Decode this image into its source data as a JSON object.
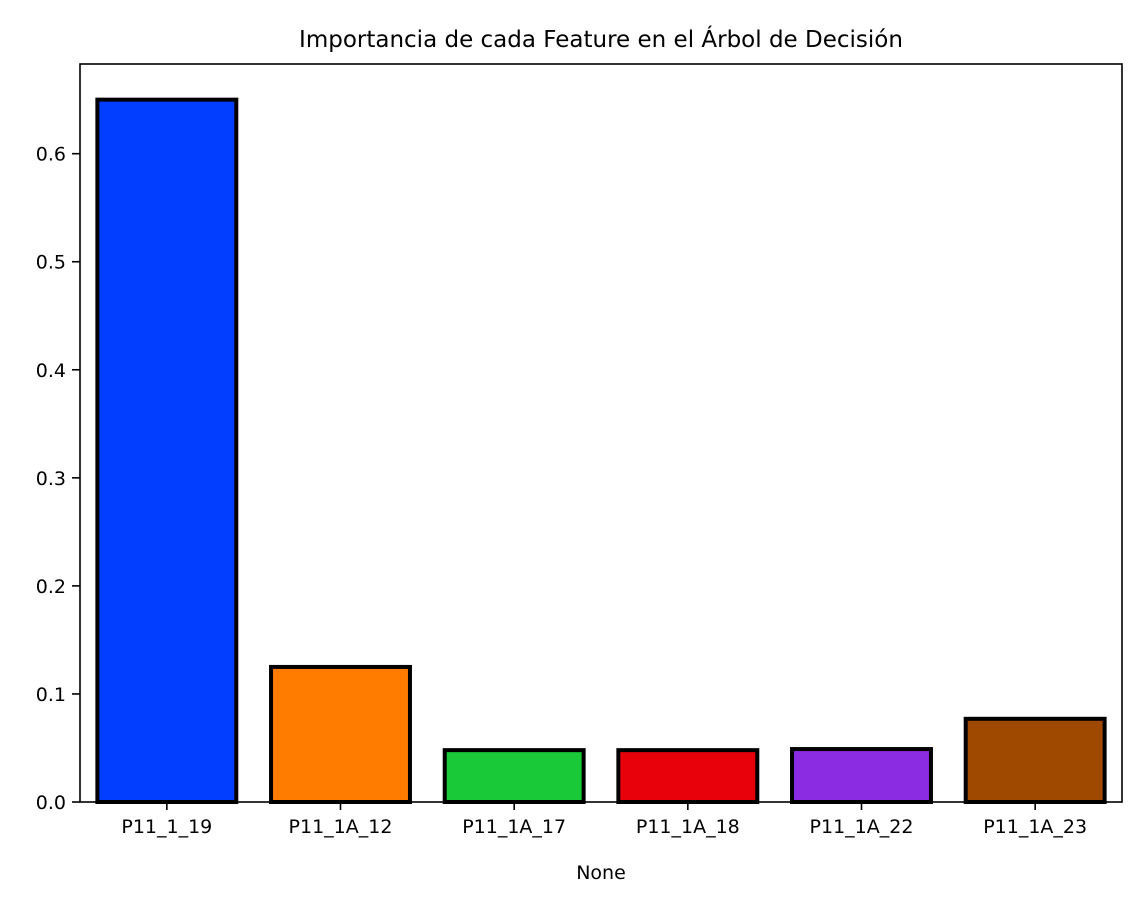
{
  "chart_data": {
    "type": "bar",
    "title": "Importancia de cada Feature en el Árbol de Decisión",
    "xlabel": "None",
    "ylabel": "",
    "categories": [
      "P11_1_19",
      "P11_1A_12",
      "P11_1A_17",
      "P11_1A_18",
      "P11_1A_22",
      "P11_1A_23"
    ],
    "values": [
      0.65,
      0.125,
      0.048,
      0.048,
      0.049,
      0.077
    ],
    "colors": [
      "#023eff",
      "#ff7c00",
      "#1ac938",
      "#e8000b",
      "#8b2be2",
      "#9f4800"
    ],
    "ylim": [
      0,
      0.683
    ],
    "yticks": [
      0.0,
      0.1,
      0.2,
      0.3,
      0.4,
      0.5,
      0.6
    ],
    "ytick_labels": [
      "0.0",
      "0.1",
      "0.2",
      "0.3",
      "0.4",
      "0.5",
      "0.6"
    ],
    "grid": false,
    "bar_edge_color": "#000000"
  }
}
